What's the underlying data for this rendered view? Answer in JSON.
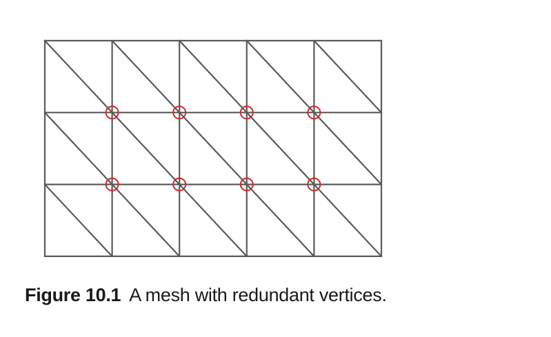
{
  "figure": {
    "label": "Figure 10.1",
    "caption": "A mesh with redundant vertices."
  },
  "mesh": {
    "columns": 5,
    "rows": 3,
    "diagonal_direction": "top-left-to-bottom-right",
    "highlighted_vertices": [
      {
        "col": 1,
        "row": 1
      },
      {
        "col": 2,
        "row": 1
      },
      {
        "col": 3,
        "row": 1
      },
      {
        "col": 4,
        "row": 1
      },
      {
        "col": 1,
        "row": 2
      },
      {
        "col": 2,
        "row": 2
      },
      {
        "col": 3,
        "row": 2
      },
      {
        "col": 4,
        "row": 2
      }
    ]
  },
  "colors": {
    "mesh_line": "#5a5a5a",
    "highlight_circle": "#cc2a2a",
    "caption_text": "#1a1a1a",
    "background": "#ffffff"
  }
}
